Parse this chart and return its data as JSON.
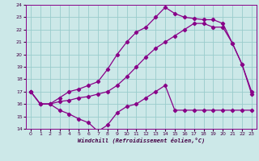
{
  "xlabel": "Windchill (Refroidissement éolien,°C)",
  "bg_color": "#cce8e8",
  "grid_color": "#99cccc",
  "line_color": "#880088",
  "xlim": [
    -0.5,
    23.5
  ],
  "ylim": [
    14,
    24
  ],
  "xticks": [
    0,
    1,
    2,
    3,
    4,
    5,
    6,
    7,
    8,
    9,
    10,
    11,
    12,
    13,
    14,
    15,
    16,
    17,
    18,
    19,
    20,
    21,
    22,
    23
  ],
  "yticks": [
    14,
    15,
    16,
    17,
    18,
    19,
    20,
    21,
    22,
    23,
    24
  ],
  "line1_x": [
    0,
    1,
    2,
    3,
    4,
    5,
    6,
    7,
    8,
    9,
    10,
    11,
    12,
    13,
    14,
    15,
    16,
    17,
    18,
    19,
    20,
    21,
    22,
    23
  ],
  "line1_y": [
    17.0,
    16.0,
    16.0,
    15.5,
    15.2,
    14.8,
    14.5,
    13.8,
    14.3,
    15.3,
    15.8,
    16.0,
    16.5,
    17.0,
    17.5,
    15.5,
    15.5,
    15.5,
    15.5,
    15.5,
    15.5,
    15.5,
    15.5,
    15.5
  ],
  "line2_x": [
    0,
    1,
    2,
    3,
    4,
    5,
    6,
    7,
    8,
    9,
    10,
    11,
    12,
    13,
    14,
    15,
    16,
    17,
    18,
    19,
    20,
    21,
    22,
    23
  ],
  "line2_y": [
    17.0,
    16.0,
    16.0,
    16.2,
    16.3,
    16.5,
    16.6,
    16.8,
    17.0,
    17.5,
    18.2,
    19.0,
    19.8,
    20.5,
    21.0,
    21.5,
    22.0,
    22.5,
    22.5,
    22.2,
    22.2,
    20.9,
    19.2,
    17.0
  ],
  "line3_x": [
    0,
    1,
    2,
    3,
    4,
    5,
    6,
    7,
    8,
    9,
    10,
    11,
    12,
    13,
    14,
    15,
    16,
    17,
    18,
    19,
    20,
    21,
    22,
    23
  ],
  "line3_y": [
    17.0,
    16.0,
    16.0,
    16.5,
    17.0,
    17.2,
    17.5,
    17.8,
    18.8,
    20.0,
    21.0,
    21.8,
    22.2,
    23.0,
    23.8,
    23.3,
    23.0,
    22.9,
    22.8,
    22.8,
    22.5,
    20.9,
    19.2,
    16.8
  ]
}
